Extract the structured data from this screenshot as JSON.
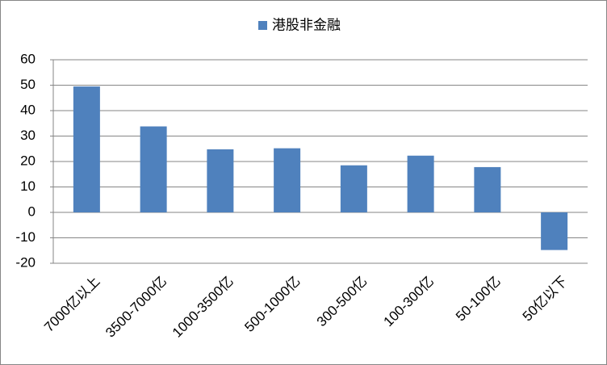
{
  "chart_data": {
    "type": "bar",
    "categories": [
      "7000亿以上",
      "3500-7000亿",
      "1000-3500亿",
      "500-1000亿",
      "300-500亿",
      "100-300亿",
      "50-100亿",
      "50亿以下"
    ],
    "series": [
      {
        "name": "港股非金融",
        "color": "#4f81bd",
        "values": [
          49.5,
          33.8,
          24.8,
          25.2,
          18.5,
          22.3,
          17.8,
          -14.8
        ]
      }
    ],
    "ylim": [
      -20,
      60
    ],
    "yticks": [
      -20,
      -10,
      0,
      10,
      20,
      30,
      40,
      50,
      60
    ],
    "grid": true,
    "legend": "top"
  }
}
